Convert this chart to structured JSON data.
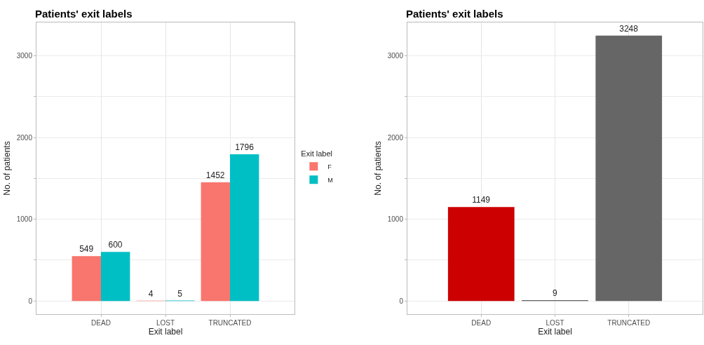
{
  "chart_data": [
    {
      "type": "bar",
      "title": "Patients' exit labels",
      "xlabel": "Exit label",
      "ylabel": "No. of patients",
      "legend_title": "Exit label",
      "categories": [
        "DEAD",
        "LOST",
        "TRUNCATED"
      ],
      "series": [
        {
          "name": "F",
          "color": "#f8766d",
          "values": [
            549,
            4,
            1452
          ]
        },
        {
          "name": "M",
          "color": "#00bfc4",
          "values": [
            600,
            5,
            1796
          ]
        }
      ],
      "ylim": [
        -162,
        3410
      ],
      "yticks": [
        0,
        {
          "value": 500,
          "label": null
        },
        1000,
        {
          "value": 1500,
          "label": null
        },
        2000,
        {
          "value": 2500,
          "label": null
        },
        3000
      ],
      "grid": true,
      "legend": "right",
      "data_labels": true
    },
    {
      "type": "bar",
      "title": "Patients' exit labels",
      "xlabel": "Exit label",
      "ylabel": "No. of patients",
      "categories": [
        "DEAD",
        "LOST",
        "TRUNCATED"
      ],
      "values": [
        1149,
        9,
        3248
      ],
      "colors": [
        "#cc0000",
        "#666666",
        "#666666"
      ],
      "ylim": [
        -162,
        3410
      ],
      "yticks": [
        0,
        {
          "value": 500,
          "label": null
        },
        1000,
        {
          "value": 1500,
          "label": null
        },
        2000,
        {
          "value": 2500,
          "label": null
        },
        3000
      ],
      "grid": true,
      "data_labels": true
    }
  ]
}
